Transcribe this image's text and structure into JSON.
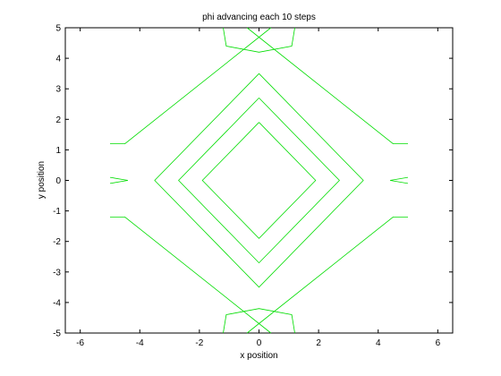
{
  "chart_data": {
    "type": "line",
    "title": "phi advancing each 10 steps",
    "xlabel": "x position",
    "ylabel": "y position",
    "xlim": [
      -6.5,
      6.5
    ],
    "ylim": [
      -5,
      5
    ],
    "xticks": [
      -6,
      -4,
      -2,
      0,
      2,
      4,
      6
    ],
    "yticks": [
      -5,
      -4,
      -3,
      -2,
      -1,
      0,
      1,
      2,
      3,
      4,
      5
    ],
    "xtick_labels": [
      "-6",
      "-4",
      "-2",
      "0",
      "2",
      "4",
      "6"
    ],
    "ytick_labels": [
      "-5",
      "-4",
      "-3",
      "-2",
      "-1",
      "0",
      "1",
      "2",
      "3",
      "4",
      "5"
    ],
    "grid": false,
    "line_color": "#00dd00",
    "series": [
      {
        "points": [
          [
            0,
            1.9
          ],
          [
            1.9,
            0
          ],
          [
            0,
            -1.9
          ],
          [
            -1.9,
            0
          ],
          [
            0,
            1.9
          ]
        ]
      },
      {
        "points": [
          [
            0,
            2.7
          ],
          [
            2.7,
            0
          ],
          [
            0,
            -2.7
          ],
          [
            -2.7,
            0
          ],
          [
            0,
            2.7
          ]
        ]
      },
      {
        "points": [
          [
            0,
            3.5
          ],
          [
            3.5,
            0
          ],
          [
            0,
            -3.5
          ],
          [
            -3.5,
            0
          ],
          [
            0,
            3.5
          ]
        ]
      },
      {
        "points": [
          [
            -1.2,
            5
          ],
          [
            -1.1,
            4.4
          ],
          [
            0,
            4.2
          ],
          [
            1.1,
            4.4
          ],
          [
            1.2,
            5
          ]
        ]
      },
      {
        "points": [
          [
            -1.2,
            -5
          ],
          [
            -1.1,
            -4.4
          ],
          [
            0,
            -4.2
          ],
          [
            1.1,
            -4.4
          ],
          [
            1.2,
            -5
          ]
        ]
      },
      {
        "points": [
          [
            5,
            0.1
          ],
          [
            4.4,
            0
          ],
          [
            5,
            -0.1
          ]
        ]
      },
      {
        "points": [
          [
            -5,
            0.1
          ],
          [
            -4.4,
            0
          ],
          [
            -5,
            -0.1
          ]
        ]
      },
      {
        "points": [
          [
            -0.4,
            5
          ],
          [
            4.5,
            1.2
          ],
          [
            5,
            1.2
          ]
        ]
      },
      {
        "points": [
          [
            0.4,
            5
          ],
          [
            -4.5,
            1.2
          ],
          [
            -5,
            1.2
          ]
        ]
      },
      {
        "points": [
          [
            -0.4,
            -5
          ],
          [
            4.5,
            -1.2
          ],
          [
            5,
            -1.2
          ]
        ]
      },
      {
        "points": [
          [
            0.4,
            -5
          ],
          [
            -4.5,
            -1.2
          ],
          [
            -5,
            -1.2
          ]
        ]
      }
    ]
  }
}
